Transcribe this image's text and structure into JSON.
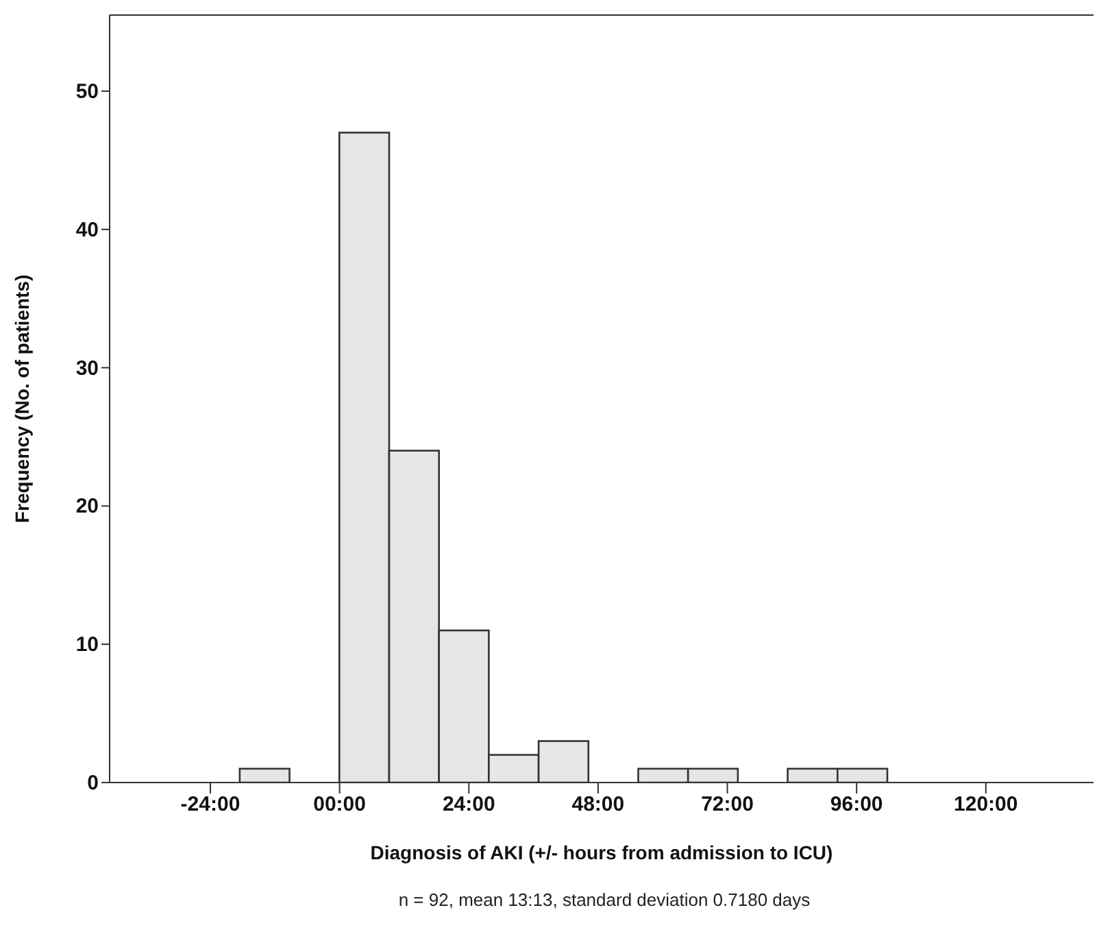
{
  "chart_data": {
    "type": "histogram",
    "xlabel": "Diagnosis of AKI (+/- hours from admission to ICU)",
    "ylabel": "Frequency (No. of patients)",
    "annotations": [
      "n = 92, mean 13:13, standard deviation 0.7180 days"
    ],
    "bins": [
      -18.5,
      -9.25,
      0,
      9.25,
      18.5,
      27.75,
      37,
      46.25,
      55.5,
      64.75,
      74,
      83.25,
      92.5,
      101.75
    ],
    "values": [
      1,
      0,
      47,
      24,
      11,
      2,
      3,
      0,
      1,
      1,
      0,
      1,
      1
    ],
    "color": "#e6e6e6",
    "xlim": [
      -42.7,
      140
    ],
    "ylim": [
      0,
      55.5
    ],
    "xticks": [
      {
        "value": -24,
        "label": "-24:00"
      },
      {
        "value": 0,
        "label": "00:00"
      },
      {
        "value": 24,
        "label": "24:00"
      },
      {
        "value": 48,
        "label": "48:00"
      },
      {
        "value": 72,
        "label": "72:00"
      },
      {
        "value": 96,
        "label": "96:00"
      },
      {
        "value": 120,
        "label": "120:00"
      }
    ],
    "yticks": [
      0,
      10,
      20,
      30,
      40,
      50
    ],
    "grid": false,
    "legend": false
  }
}
